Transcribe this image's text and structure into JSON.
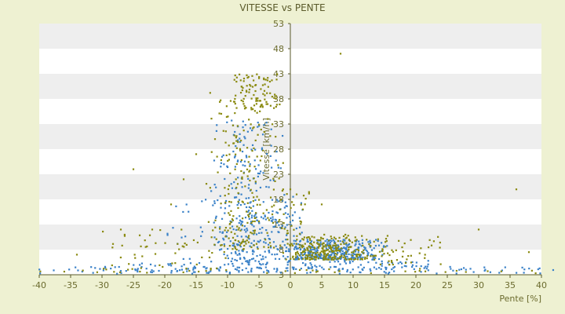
{
  "chart_data": {
    "type": "scatter",
    "title": "VITESSE vs PENTE",
    "xlabel": "Pente [%]",
    "ylabel": "Vitesse [km/h]",
    "xlim": [
      -40,
      40
    ],
    "ylim": [
      3,
      53
    ],
    "xticks": [
      -40,
      -35,
      -30,
      -25,
      -20,
      -15,
      -10,
      -5,
      0,
      5,
      10,
      15,
      20,
      25,
      30,
      35,
      40
    ],
    "yticks": [
      3,
      8,
      13,
      18,
      23,
      28,
      33,
      38,
      43,
      48,
      53
    ],
    "grid": "alternating horizontal bands",
    "colors": {
      "background": "#eef1d2",
      "plot_white": "#ffffff",
      "plot_band": "#eeeeee",
      "axis": "#5a5a2a",
      "series_blue": "#3b82c8",
      "series_olive": "#8a8a10"
    },
    "series": [
      {
        "color": "#3b82c8",
        "clusters": [
          {
            "n": 120,
            "x": [
              -42,
              42
            ],
            "y": [
              3.2,
              4.6
            ],
            "d": "uniform"
          },
          {
            "n": 60,
            "x": [
              -25,
              -2
            ],
            "y": [
              3.5,
              5.5
            ],
            "d": "uniform"
          },
          {
            "n": 280,
            "x": [
              -13,
              -1
            ],
            "y": [
              5,
              34
            ],
            "d": "tri",
            "mx": -7
          },
          {
            "n": 50,
            "x": [
              -20,
              -2
            ],
            "y": [
              6,
              18
            ],
            "d": "uniform"
          },
          {
            "n": 360,
            "x": [
              -3,
              16
            ],
            "y": [
              6,
              10
            ],
            "d": "tri",
            "mx": 6
          },
          {
            "n": 70,
            "x": [
              -1,
              22
            ],
            "y": [
              4,
              6
            ],
            "d": "uniform"
          },
          {
            "n": 40,
            "x": [
              -3,
              2
            ],
            "y": [
              10,
              20
            ],
            "d": "uniform"
          }
        ]
      },
      {
        "color": "#8a8a10",
        "clusters": [
          {
            "n": 60,
            "x": [
              -30,
              -8
            ],
            "y": [
              4,
              12
            ],
            "d": "uniform"
          },
          {
            "n": 220,
            "x": [
              -14,
              -1
            ],
            "y": [
              8,
              40
            ],
            "d": "tri",
            "mx": -6
          },
          {
            "n": 80,
            "x": [
              -9,
              -2
            ],
            "y": [
              36,
              43
            ],
            "d": "uniform"
          },
          {
            "n": 260,
            "x": [
              -2,
              16
            ],
            "y": [
              6,
              11
            ],
            "d": "tri",
            "mx": 5
          },
          {
            "n": 40,
            "x": [
              14,
              24
            ],
            "y": [
              5,
              11
            ],
            "d": "uniform"
          },
          {
            "n": 30,
            "x": [
              -3,
              3
            ],
            "y": [
              11,
              20
            ],
            "d": "uniform"
          },
          {
            "n": 40,
            "x": [
              -40,
              40
            ],
            "y": [
              3.3,
              4.2
            ],
            "d": "uniform"
          }
        ],
        "points": [
          [
            8,
            47
          ],
          [
            36,
            20
          ],
          [
            30,
            12
          ],
          [
            -25,
            24
          ],
          [
            -34,
            7
          ],
          [
            38,
            7.5
          ],
          [
            -17,
            22
          ],
          [
            -19,
            17
          ],
          [
            -22,
            12
          ],
          [
            -27,
            12
          ],
          [
            -12,
            30
          ],
          [
            -15,
            27
          ],
          [
            0,
            20
          ],
          [
            1,
            19
          ],
          [
            2,
            16
          ],
          [
            5,
            17
          ]
        ]
      }
    ]
  }
}
